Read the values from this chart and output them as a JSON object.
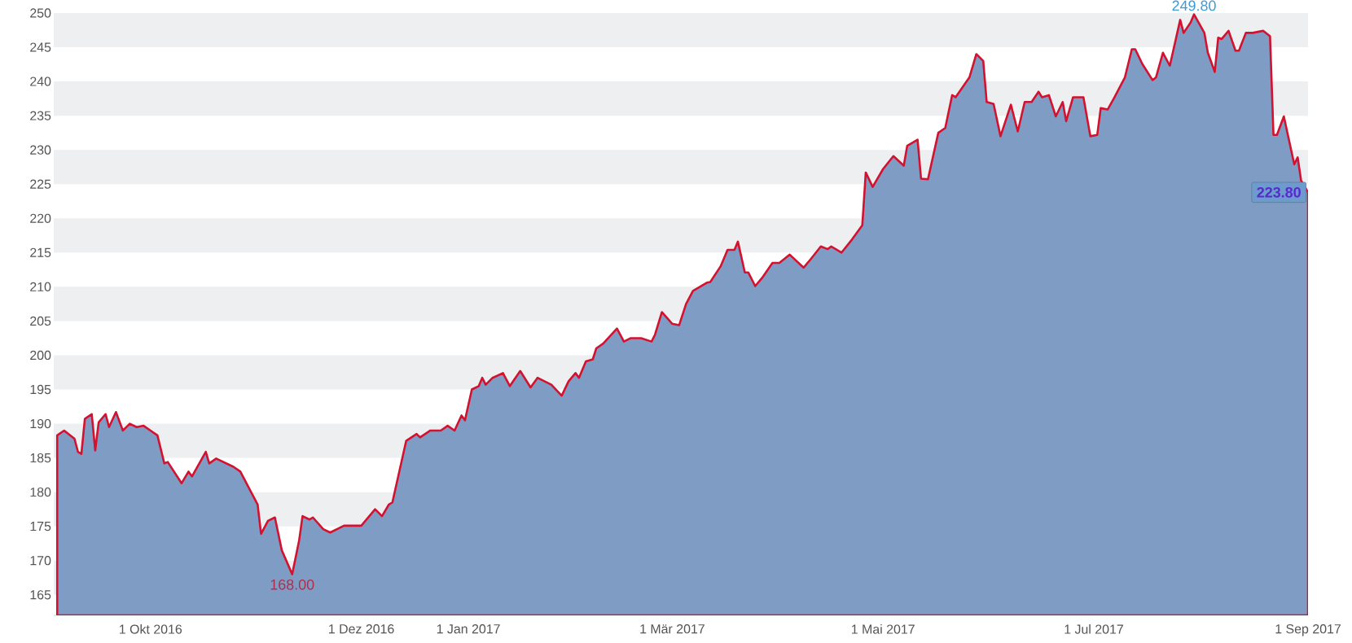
{
  "chart_data": {
    "type": "area",
    "xlim": [
      "2016-09-03",
      "2017-09-01"
    ],
    "ylim": [
      162,
      250
    ],
    "xticks": [
      {
        "value": "2016-10-01",
        "label": "1 Okt 2016"
      },
      {
        "value": "2016-12-01",
        "label": "1 Dez 2016"
      },
      {
        "value": "2017-01-01",
        "label": "1 Jan 2017"
      },
      {
        "value": "2017-03-01",
        "label": "1 Mär 2017"
      },
      {
        "value": "2017-05-01",
        "label": "1 Mai 2017"
      },
      {
        "value": "2017-07-01",
        "label": "1 Jul 2017"
      },
      {
        "value": "2017-09-01",
        "label": "1 Sep 2017"
      }
    ],
    "yticks": [
      165,
      170,
      175,
      180,
      185,
      190,
      195,
      200,
      205,
      210,
      215,
      220,
      225,
      230,
      235,
      240,
      245,
      250
    ],
    "marker": "none",
    "line_style": "solid",
    "bands": [
      {
        "axis": "y",
        "from": 245,
        "to": 250,
        "color": "#eeeff1"
      },
      {
        "axis": "y",
        "from": 235,
        "to": 240,
        "color": "#eeeff1"
      },
      {
        "axis": "y",
        "from": 225,
        "to": 230,
        "color": "#eeeff1"
      },
      {
        "axis": "y",
        "from": 215,
        "to": 220,
        "color": "#eeeff1"
      },
      {
        "axis": "y",
        "from": 205,
        "to": 210,
        "color": "#eeeff1"
      },
      {
        "axis": "y",
        "from": 195,
        "to": 200,
        "color": "#eeeff1"
      },
      {
        "axis": "y",
        "from": 185,
        "to": 190,
        "color": "#eeeff1"
      },
      {
        "axis": "y",
        "from": 175,
        "to": 180,
        "color": "#eeeff1"
      },
      {
        "axis": "y",
        "from": 165,
        "to": 170,
        "color": "#eeeff1"
      }
    ],
    "series": [
      {
        "color": "#7f9dc4",
        "x": [
          "2016-09-04",
          "2016-09-06",
          "2016-09-09",
          "2016-09-10",
          "2016-09-11",
          "2016-09-12",
          "2016-09-14",
          "2016-09-15",
          "2016-09-16",
          "2016-09-18",
          "2016-09-19",
          "2016-09-21",
          "2016-09-23",
          "2016-09-25",
          "2016-09-27",
          "2016-09-29",
          "2016-10-01",
          "2016-10-03",
          "2016-10-05",
          "2016-10-06",
          "2016-10-10",
          "2016-10-12",
          "2016-10-13",
          "2016-10-17",
          "2016-10-18",
          "2016-10-20",
          "2016-10-25",
          "2016-10-27",
          "2016-11-01",
          "2016-11-02",
          "2016-11-04",
          "2016-11-06",
          "2016-11-08",
          "2016-11-11",
          "2016-11-13",
          "2016-11-14",
          "2016-11-16",
          "2016-11-17",
          "2016-11-20",
          "2016-11-22",
          "2016-11-26",
          "2016-12-01",
          "2016-12-05",
          "2016-12-07",
          "2016-12-09",
          "2016-12-10",
          "2016-12-14",
          "2016-12-17",
          "2016-12-18",
          "2016-12-21",
          "2016-12-24",
          "2016-12-26",
          "2016-12-28",
          "2016-12-30",
          "2016-12-31",
          "2017-01-02",
          "2017-01-04",
          "2017-01-05",
          "2017-01-06",
          "2017-01-08",
          "2017-01-11",
          "2017-01-13",
          "2017-01-16",
          "2017-01-19",
          "2017-01-21",
          "2017-01-25",
          "2017-01-28",
          "2017-01-30",
          "2017-02-01",
          "2017-02-02",
          "2017-02-04",
          "2017-02-06",
          "2017-02-07",
          "2017-02-09",
          "2017-02-13",
          "2017-02-15",
          "2017-02-17",
          "2017-02-20",
          "2017-02-23",
          "2017-02-24",
          "2017-02-26",
          "2017-03-01",
          "2017-03-03",
          "2017-03-05",
          "2017-03-07",
          "2017-03-11",
          "2017-03-12",
          "2017-03-15",
          "2017-03-17",
          "2017-03-19",
          "2017-03-20",
          "2017-03-22",
          "2017-03-23",
          "2017-03-25",
          "2017-03-27",
          "2017-03-30",
          "2017-04-01",
          "2017-04-04",
          "2017-04-08",
          "2017-04-10",
          "2017-04-13",
          "2017-04-15",
          "2017-04-16",
          "2017-04-19",
          "2017-04-22",
          "2017-04-25",
          "2017-04-26",
          "2017-04-28",
          "2017-05-01",
          "2017-05-04",
          "2017-05-07",
          "2017-05-08",
          "2017-05-11",
          "2017-05-12",
          "2017-05-14",
          "2017-05-17",
          "2017-05-19",
          "2017-05-21",
          "2017-05-22",
          "2017-05-26",
          "2017-05-28",
          "2017-05-30",
          "2017-05-31",
          "2017-06-02",
          "2017-06-04",
          "2017-06-07",
          "2017-06-09",
          "2017-06-11",
          "2017-06-13",
          "2017-06-15",
          "2017-06-16",
          "2017-06-18",
          "2017-06-20",
          "2017-06-22",
          "2017-06-23",
          "2017-06-25",
          "2017-06-28",
          "2017-06-30",
          "2017-07-02",
          "2017-07-03",
          "2017-07-05",
          "2017-07-07",
          "2017-07-10",
          "2017-07-12",
          "2017-07-13",
          "2017-07-15",
          "2017-07-18",
          "2017-07-19",
          "2017-07-21",
          "2017-07-23",
          "2017-07-26",
          "2017-07-27",
          "2017-07-29",
          "2017-07-30",
          "2017-08-02",
          "2017-08-03",
          "2017-08-05",
          "2017-08-06",
          "2017-08-07",
          "2017-08-09",
          "2017-08-11",
          "2017-08-12",
          "2017-08-14",
          "2017-08-16",
          "2017-08-19",
          "2017-08-21",
          "2017-08-22",
          "2017-08-23",
          "2017-08-25",
          "2017-08-28",
          "2017-08-29",
          "2017-08-30",
          "2017-09-01"
        ],
        "values": [
          188.3,
          189.0,
          187.8,
          185.9,
          185.6,
          190.7,
          191.4,
          186.1,
          190.2,
          191.4,
          189.5,
          191.7,
          189.0,
          190.0,
          189.5,
          189.7,
          189.0,
          188.3,
          184.2,
          184.4,
          181.3,
          183.0,
          182.3,
          185.9,
          184.2,
          184.9,
          183.7,
          183.0,
          178.2,
          173.9,
          175.8,
          176.3,
          171.5,
          168.0,
          172.9,
          176.5,
          176.0,
          176.3,
          174.6,
          174.1,
          175.1,
          175.1,
          177.5,
          176.5,
          178.2,
          178.5,
          187.5,
          188.5,
          188.0,
          189.0,
          189.0,
          189.7,
          189.0,
          191.2,
          190.5,
          195.0,
          195.5,
          196.7,
          195.7,
          196.7,
          197.4,
          195.5,
          197.7,
          195.3,
          196.7,
          195.7,
          194.1,
          196.2,
          197.4,
          196.7,
          199.1,
          199.4,
          201.0,
          201.7,
          203.9,
          202.0,
          202.5,
          202.5,
          202.0,
          203.0,
          206.3,
          204.6,
          204.4,
          207.5,
          209.4,
          210.6,
          210.7,
          213.0,
          215.4,
          215.4,
          216.6,
          212.1,
          212.1,
          210.1,
          211.3,
          213.5,
          213.5,
          214.7,
          212.8,
          214.0,
          215.9,
          215.5,
          215.9,
          215.0,
          216.9,
          219.0,
          226.7,
          224.6,
          227.2,
          229.1,
          227.7,
          230.6,
          231.5,
          225.8,
          225.7,
          232.5,
          233.2,
          238.0,
          237.7,
          240.6,
          244.0,
          243.0,
          237.0,
          236.7,
          232.0,
          236.6,
          232.7,
          237.0,
          237.0,
          238.5,
          237.7,
          238.0,
          234.9,
          237.0,
          234.2,
          237.7,
          237.7,
          232.0,
          232.2,
          236.1,
          235.9,
          237.7,
          240.6,
          244.7,
          244.7,
          242.6,
          240.2,
          240.6,
          244.2,
          242.3,
          249.0,
          247.1,
          248.6,
          249.8,
          247.1,
          244.2,
          241.4,
          246.4,
          246.2,
          247.4,
          244.5,
          244.5,
          247.1,
          247.1,
          247.4,
          246.6,
          232.2,
          232.2,
          234.9,
          227.9,
          228.9,
          225.5,
          223.8
        ]
      }
    ],
    "annotations": [
      "168.00",
      "249.80",
      {
        "text": "223.80",
        "x": "2017-09-01",
        "y": 223.8
      }
    ]
  }
}
